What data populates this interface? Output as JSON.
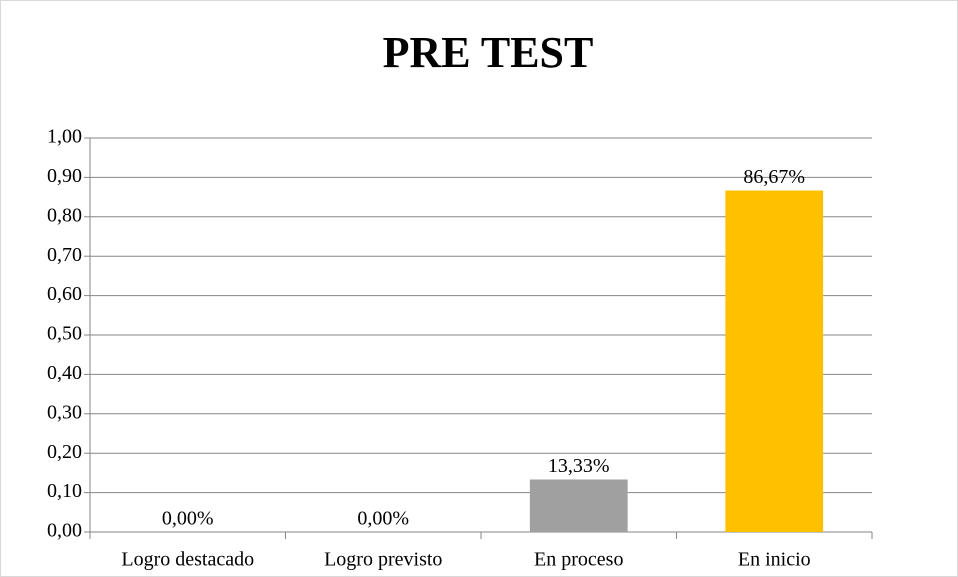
{
  "chart_data": {
    "type": "bar",
    "title": "PRE TEST",
    "categories": [
      "Logro destacado",
      "Logro previsto",
      "En proceso",
      "En inicio"
    ],
    "values": [
      0,
      0,
      0.1333,
      0.8667
    ],
    "value_labels": [
      "0,00%",
      "0,00%",
      "13,33%",
      "86,67%"
    ],
    "colors": [
      "#a0a0a0",
      "#a0a0a0",
      "#a0a0a0",
      "#ffc000"
    ],
    "ylim": [
      0,
      1
    ],
    "yticks": [
      {
        "value": 0,
        "label": "0,00"
      },
      {
        "value": 0.1,
        "label": "0,10"
      },
      {
        "value": 0.2,
        "label": "0,20"
      },
      {
        "value": 0.3,
        "label": "0,30"
      },
      {
        "value": 0.4,
        "label": "0,40"
      },
      {
        "value": 0.5,
        "label": "0,50"
      },
      {
        "value": 0.6,
        "label": "0,60"
      },
      {
        "value": 0.7,
        "label": "0,70"
      },
      {
        "value": 0.8,
        "label": "0,80"
      },
      {
        "value": 0.9,
        "label": "0,90"
      },
      {
        "value": 1,
        "label": "1,00"
      }
    ],
    "grid": true
  }
}
